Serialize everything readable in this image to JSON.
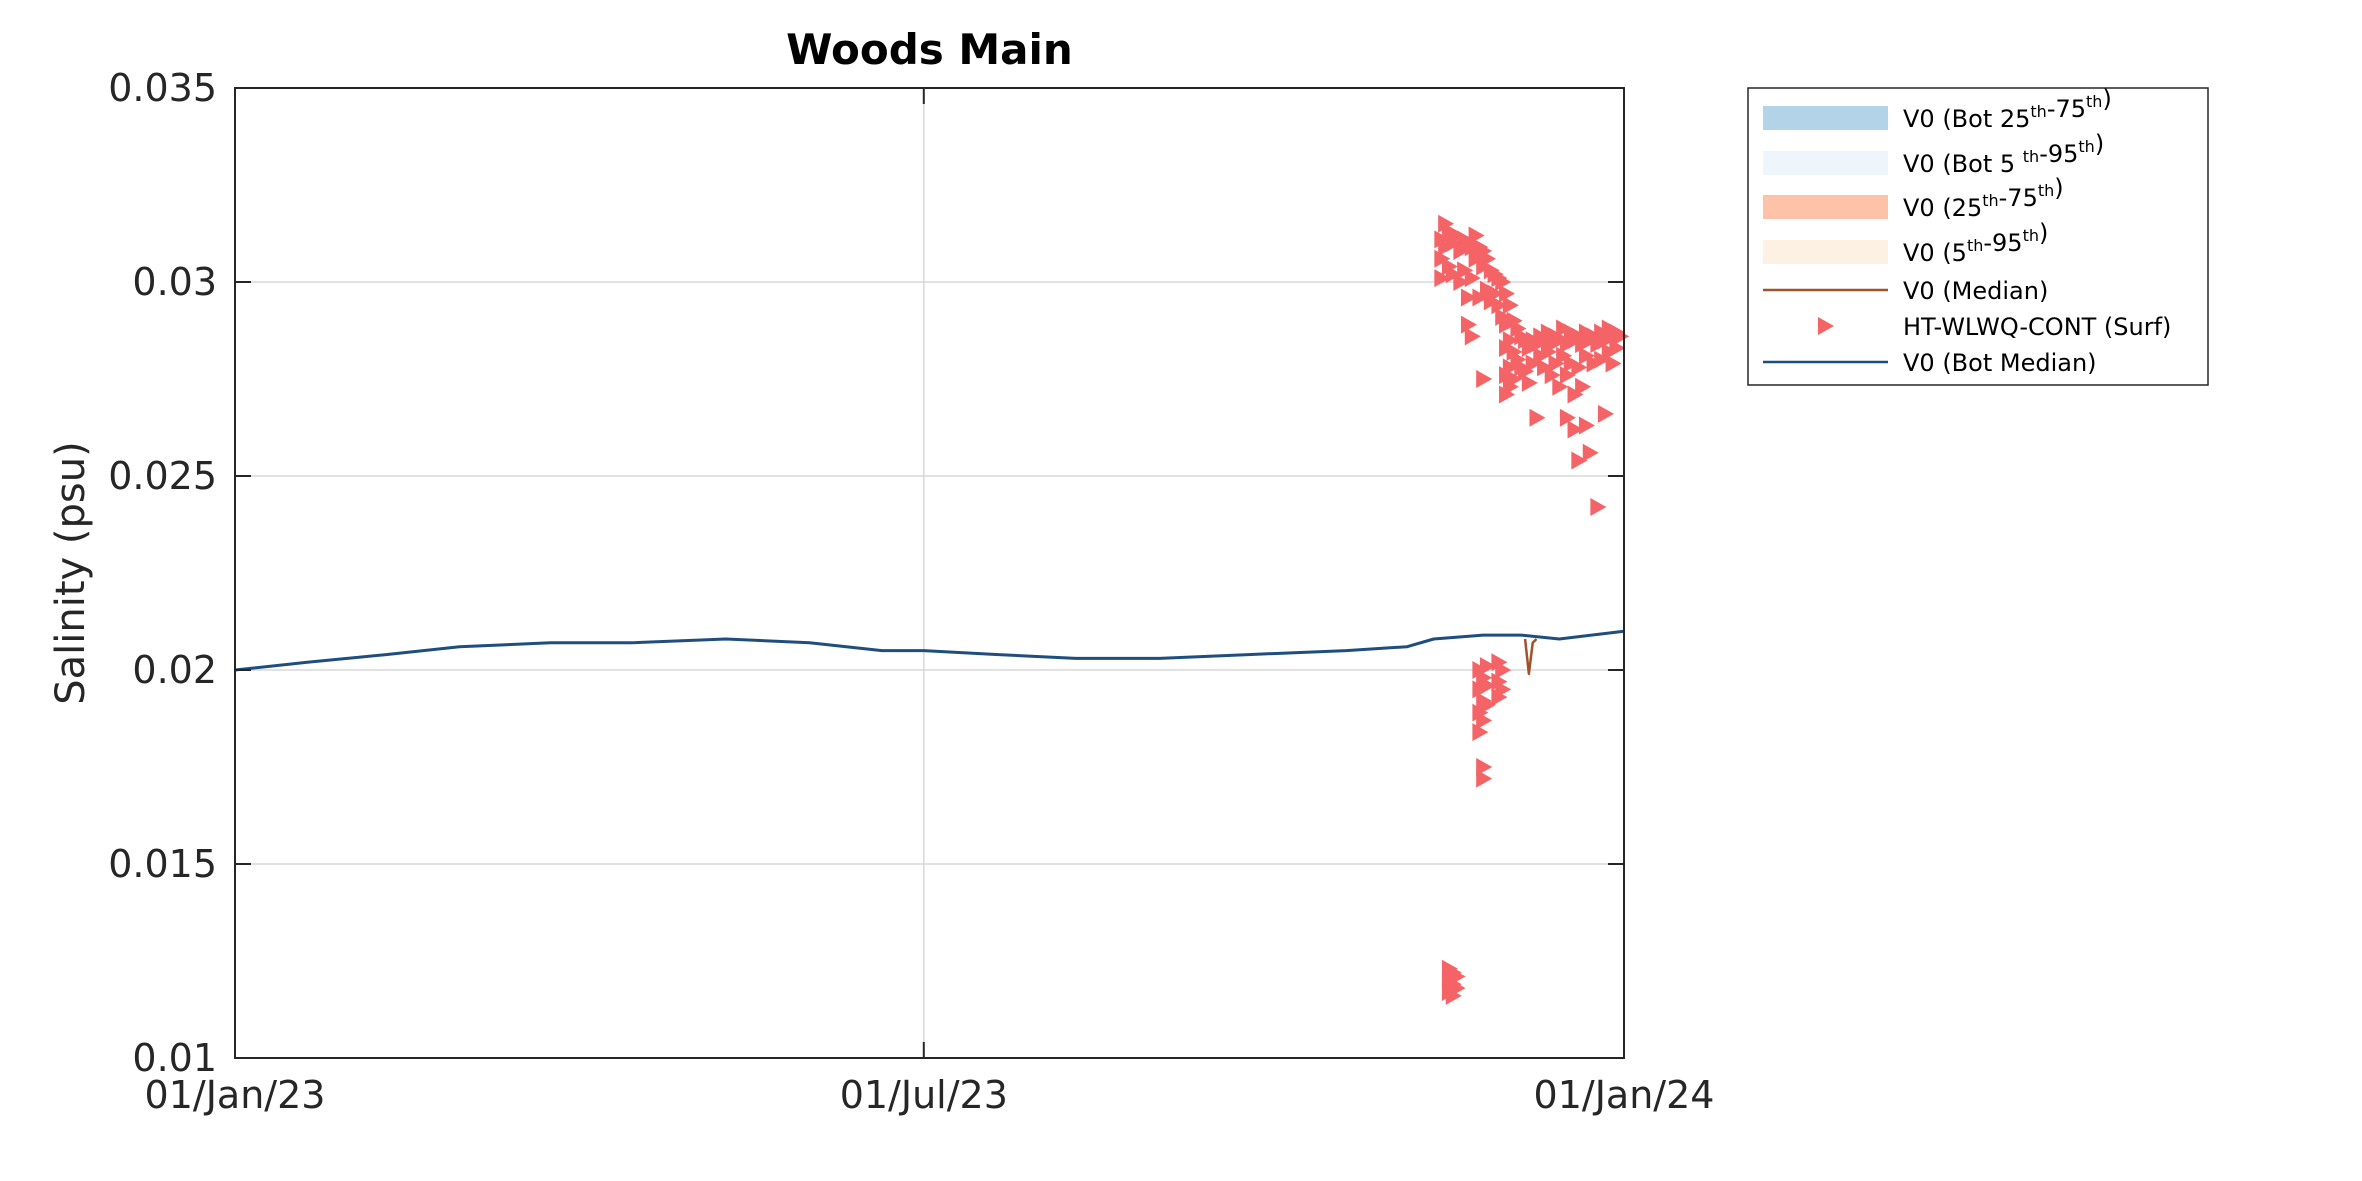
{
  "chart_data": {
    "type": "line",
    "title": "Woods Main",
    "ylabel": "Salinity (psu)",
    "xlabel": "",
    "xlim": [
      "2023-01-01",
      "2024-01-01"
    ],
    "ylim": [
      0.01,
      0.035
    ],
    "x_ticks": [
      "2023-01-01",
      "2023-07-01",
      "2024-01-01"
    ],
    "x_tick_labels": [
      "01/Jan/23",
      "01/Jul/23",
      "01/Jan/24"
    ],
    "y_ticks": [
      0.01,
      0.015,
      0.02,
      0.025,
      0.03,
      0.035
    ],
    "y_tick_labels": [
      "0.01",
      "0.015",
      "0.02",
      "0.025",
      "0.03",
      "0.035"
    ],
    "grid": true,
    "legend_position": "outside-top-right",
    "legend": [
      {
        "key": "bot_iqr",
        "parts": [
          {
            "t": "V0 (Bot 25"
          },
          {
            "t": "th",
            "sup": true
          },
          {
            "t": "-75"
          },
          {
            "t": "th",
            "sup": true
          },
          {
            "t": ")"
          }
        ],
        "color": "#b3d3e8",
        "kind": "patch"
      },
      {
        "key": "bot_90",
        "parts": [
          {
            "t": "V0 (Bot 5 "
          },
          {
            "t": "th",
            "sup": true
          },
          {
            "t": "-95"
          },
          {
            "t": "th",
            "sup": true
          },
          {
            "t": ")"
          }
        ],
        "color": "#eef5fb",
        "kind": "patch"
      },
      {
        "key": "iqr",
        "parts": [
          {
            "t": "V0 (25"
          },
          {
            "t": "th",
            "sup": true
          },
          {
            "t": "-75"
          },
          {
            "t": "th",
            "sup": true
          },
          {
            "t": ")"
          }
        ],
        "color": "#fdc3a8",
        "kind": "patch"
      },
      {
        "key": "p90",
        "parts": [
          {
            "t": "V0 (5"
          },
          {
            "t": "th",
            "sup": true
          },
          {
            "t": "-95"
          },
          {
            "t": "th",
            "sup": true
          },
          {
            "t": ")"
          }
        ],
        "color": "#fdf1e4",
        "kind": "patch"
      },
      {
        "key": "median",
        "parts": [
          {
            "t": "V0 (Median)"
          }
        ],
        "color": "#a0522d",
        "kind": "line"
      },
      {
        "key": "obs",
        "parts": [
          {
            "t": "HT-WLWQ-CONT (Surf)"
          }
        ],
        "color": "#f46366",
        "kind": "marker"
      },
      {
        "key": "bot_median",
        "parts": [
          {
            "t": "V0 (Bot Median)"
          }
        ],
        "color": "#1f4e7e",
        "kind": "line"
      }
    ],
    "series": [
      {
        "key": "bot_median",
        "color": "#1f4e7e",
        "x": [
          "2023-01-01",
          "2023-01-20",
          "2023-02-10",
          "2023-03-01",
          "2023-03-25",
          "2023-04-15",
          "2023-05-10",
          "2023-06-01",
          "2023-06-20",
          "2023-07-01",
          "2023-07-20",
          "2023-08-10",
          "2023-09-01",
          "2023-09-25",
          "2023-10-20",
          "2023-11-05",
          "2023-11-12",
          "2023-11-25",
          "2023-12-05",
          "2023-12-15",
          "2024-01-01"
        ],
        "y": [
          0.02,
          0.0202,
          0.0204,
          0.0206,
          0.0207,
          0.0207,
          0.0208,
          0.0207,
          0.0205,
          0.0205,
          0.0204,
          0.0203,
          0.0203,
          0.0204,
          0.0205,
          0.0206,
          0.0208,
          0.0209,
          0.0209,
          0.0208,
          0.021
        ]
      },
      {
        "key": "median",
        "color": "#a0522d",
        "x": [
          "2023-12-06",
          "2023-12-07",
          "2023-12-08",
          "2023-12-09"
        ],
        "y": [
          0.0208,
          0.0199,
          0.0207,
          0.0208
        ]
      }
    ],
    "scatter": {
      "key": "obs",
      "color": "#f46366",
      "points": [
        [
          "2023-11-14",
          0.0301
        ],
        [
          "2023-11-14",
          0.0306
        ],
        [
          "2023-11-14",
          0.0311
        ],
        [
          "2023-11-15",
          0.0315
        ],
        [
          "2023-11-15",
          0.0309
        ],
        [
          "2023-11-16",
          0.0313
        ],
        [
          "2023-11-16",
          0.0304
        ],
        [
          "2023-11-17",
          0.031
        ],
        [
          "2023-11-17",
          0.0302
        ],
        [
          "2023-11-18",
          0.0312
        ],
        [
          "2023-11-19",
          0.0308
        ],
        [
          "2023-11-19",
          0.03
        ],
        [
          "2023-11-20",
          0.0311
        ],
        [
          "2023-11-20",
          0.0303
        ],
        [
          "2023-11-21",
          0.031
        ],
        [
          "2023-11-21",
          0.0296
        ],
        [
          "2023-11-21",
          0.0289
        ],
        [
          "2023-11-22",
          0.0309
        ],
        [
          "2023-11-22",
          0.0301
        ],
        [
          "2023-11-22",
          0.0286
        ],
        [
          "2023-11-23",
          0.0312
        ],
        [
          "2023-11-23",
          0.0306
        ],
        [
          "2023-11-24",
          0.0309
        ],
        [
          "2023-11-24",
          0.0296
        ],
        [
          "2023-11-25",
          0.0308
        ],
        [
          "2023-11-25",
          0.0304
        ],
        [
          "2023-11-25",
          0.0275
        ],
        [
          "2023-11-26",
          0.0306
        ],
        [
          "2023-11-26",
          0.0298
        ],
        [
          "2023-11-27",
          0.0303
        ],
        [
          "2023-11-27",
          0.0295
        ],
        [
          "2023-11-28",
          0.0302
        ],
        [
          "2023-11-28",
          0.0297
        ],
        [
          "2023-11-29",
          0.0301
        ],
        [
          "2023-11-29",
          0.0294
        ],
        [
          "2023-11-30",
          0.03
        ],
        [
          "2023-11-30",
          0.0291
        ],
        [
          "2023-12-01",
          0.0297
        ],
        [
          "2023-12-01",
          0.0289
        ],
        [
          "2023-12-01",
          0.0283
        ],
        [
          "2023-12-01",
          0.0276
        ],
        [
          "2023-12-01",
          0.0271
        ],
        [
          "2023-12-02",
          0.0294
        ],
        [
          "2023-12-02",
          0.0285
        ],
        [
          "2023-12-02",
          0.0278
        ],
        [
          "2023-12-02",
          0.0273
        ],
        [
          "2023-12-03",
          0.029
        ],
        [
          "2023-12-03",
          0.0282
        ],
        [
          "2023-12-03",
          0.0275
        ],
        [
          "2023-12-04",
          0.0288
        ],
        [
          "2023-12-04",
          0.028
        ],
        [
          "2023-12-05",
          0.0286
        ],
        [
          "2023-12-05",
          0.0278
        ],
        [
          "2023-12-06",
          0.0285
        ],
        [
          "2023-12-06",
          0.0277
        ],
        [
          "2023-12-07",
          0.0283
        ],
        [
          "2023-12-07",
          0.0274
        ],
        [
          "2023-12-08",
          0.0285
        ],
        [
          "2023-12-08",
          0.0279
        ],
        [
          "2023-12-09",
          0.0284
        ],
        [
          "2023-12-09",
          0.0265
        ],
        [
          "2023-12-10",
          0.0286
        ],
        [
          "2023-12-10",
          0.0281
        ],
        [
          "2023-12-11",
          0.0285
        ],
        [
          "2023-12-11",
          0.0278
        ],
        [
          "2023-12-12",
          0.0287
        ],
        [
          "2023-12-12",
          0.0282
        ],
        [
          "2023-12-13",
          0.0284
        ],
        [
          "2023-12-13",
          0.0276
        ],
        [
          "2023-12-14",
          0.0286
        ],
        [
          "2023-12-14",
          0.0279
        ],
        [
          "2023-12-15",
          0.0285
        ],
        [
          "2023-12-15",
          0.0273
        ],
        [
          "2023-12-16",
          0.0288
        ],
        [
          "2023-12-16",
          0.0281
        ],
        [
          "2023-12-17",
          0.0284
        ],
        [
          "2023-12-17",
          0.0276
        ],
        [
          "2023-12-17",
          0.0265
        ],
        [
          "2023-12-18",
          0.0287
        ],
        [
          "2023-12-18",
          0.0279
        ],
        [
          "2023-12-19",
          0.0285
        ],
        [
          "2023-12-19",
          0.0271
        ],
        [
          "2023-12-19",
          0.0262
        ],
        [
          "2023-12-20",
          0.0286
        ],
        [
          "2023-12-20",
          0.0278
        ],
        [
          "2023-12-20",
          0.0254
        ],
        [
          "2023-12-21",
          0.0284
        ],
        [
          "2023-12-21",
          0.0273
        ],
        [
          "2023-12-22",
          0.0287
        ],
        [
          "2023-12-22",
          0.0281
        ],
        [
          "2023-12-22",
          0.0263
        ],
        [
          "2023-12-23",
          0.0285
        ],
        [
          "2023-12-23",
          0.0256
        ],
        [
          "2023-12-24",
          0.0286
        ],
        [
          "2023-12-24",
          0.0279
        ],
        [
          "2023-12-25",
          0.0284
        ],
        [
          "2023-12-25",
          0.0242
        ],
        [
          "2023-12-26",
          0.0287
        ],
        [
          "2023-12-26",
          0.028
        ],
        [
          "2023-12-27",
          0.0285
        ],
        [
          "2023-12-27",
          0.0266
        ],
        [
          "2023-12-28",
          0.0288
        ],
        [
          "2023-12-28",
          0.0282
        ],
        [
          "2023-12-29",
          0.0286
        ],
        [
          "2023-12-29",
          0.0279
        ],
        [
          "2023-12-30",
          0.0287
        ],
        [
          "2023-12-30",
          0.0283
        ],
        [
          "2023-12-31",
          0.0286
        ],
        [
          "2023-11-16",
          0.0123
        ],
        [
          "2023-11-16",
          0.012
        ],
        [
          "2023-11-16",
          0.0117
        ],
        [
          "2023-11-17",
          0.0122
        ],
        [
          "2023-11-17",
          0.0119
        ],
        [
          "2023-11-17",
          0.0116
        ],
        [
          "2023-11-18",
          0.0121
        ],
        [
          "2023-11-18",
          0.0118
        ],
        [
          "2023-11-24",
          0.02
        ],
        [
          "2023-11-24",
          0.0195
        ],
        [
          "2023-11-24",
          0.0189
        ],
        [
          "2023-11-24",
          0.0184
        ],
        [
          "2023-11-25",
          0.0198
        ],
        [
          "2023-11-25",
          0.0192
        ],
        [
          "2023-11-25",
          0.0187
        ],
        [
          "2023-11-25",
          0.0175
        ],
        [
          "2023-11-25",
          0.0172
        ],
        [
          "2023-11-26",
          0.0201
        ],
        [
          "2023-11-26",
          0.0196
        ],
        [
          "2023-11-26",
          0.0191
        ],
        [
          "2023-11-29",
          0.0202
        ],
        [
          "2023-11-29",
          0.0197
        ],
        [
          "2023-11-29",
          0.0193
        ],
        [
          "2023-11-30",
          0.02
        ],
        [
          "2023-11-30",
          0.0195
        ]
      ]
    }
  }
}
